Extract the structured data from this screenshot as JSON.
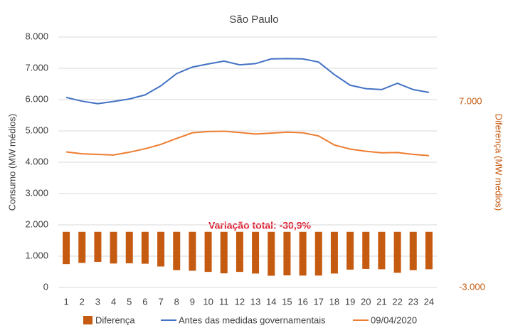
{
  "chart_data": {
    "type": "combo",
    "title": "São Paulo",
    "y_label": "Consumo (MW médios)",
    "y2_label": "Diferença (MW médios)",
    "annotation": "Variação total: -30,9%",
    "categories": [
      "1",
      "2",
      "3",
      "4",
      "5",
      "6",
      "7",
      "8",
      "9",
      "10",
      "11",
      "12",
      "13",
      "14",
      "15",
      "16",
      "17",
      "18",
      "19",
      "20",
      "21",
      "22",
      "23",
      "24"
    ],
    "ylim": [
      0,
      8000
    ],
    "yticks": [
      0,
      {
        "value": 1000,
        "label": "1.000"
      },
      {
        "value": 2000,
        "label": "2.000"
      },
      {
        "value": 3000,
        "label": "3.000"
      },
      {
        "value": 4000,
        "label": "4.000"
      },
      {
        "value": 5000,
        "label": "5.000"
      },
      {
        "value": 6000,
        "label": "6.000"
      },
      {
        "value": 7000,
        "label": "7.000"
      },
      {
        "value": 8000,
        "label": "8.000"
      }
    ],
    "y2lim": [
      -3000,
      10500
    ],
    "y2ticks": [
      {
        "value": 7000,
        "label": "7.000"
      },
      {
        "value": -3000,
        "label": "-3.000"
      }
    ],
    "grid": true,
    "series": [
      {
        "name": "Diferença",
        "type": "bar",
        "axis": "y2",
        "color": "#c55a11",
        "values": [
          -1740,
          -1680,
          -1620,
          -1710,
          -1700,
          -1720,
          -1870,
          -2070,
          -2100,
          -2160,
          -2240,
          -2160,
          -2250,
          -2370,
          -2350,
          -2360,
          -2360,
          -2250,
          -2040,
          -2000,
          -2020,
          -2210,
          -2070,
          -2020
        ]
      },
      {
        "name": "Antes das medidas governamentais",
        "type": "line",
        "color": "#4472c4",
        "values": [
          6070,
          5950,
          5870,
          5940,
          6020,
          6150,
          6440,
          6830,
          7040,
          7140,
          7230,
          7110,
          7150,
          7300,
          7310,
          7300,
          7200,
          6800,
          6460,
          6350,
          6320,
          6520,
          6320,
          6230
        ]
      },
      {
        "name": "09/04/2020",
        "type": "line",
        "color": "#ed7d31",
        "values": [
          4330,
          4270,
          4250,
          4230,
          4320,
          4430,
          4570,
          4760,
          4940,
          4980,
          4990,
          4950,
          4900,
          4930,
          4960,
          4940,
          4840,
          4550,
          4420,
          4350,
          4300,
          4310,
          4250,
          4210
        ]
      }
    ]
  }
}
